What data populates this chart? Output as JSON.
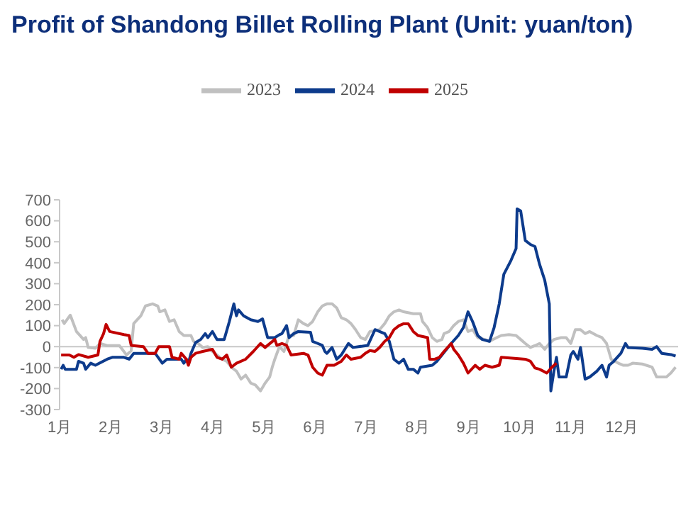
{
  "chart_data": {
    "type": "line",
    "title": "Profit of Shandong Billet Rolling Plant (Unit: yuan/ton)",
    "xlim": [
      1,
      13.1
    ],
    "xticks": [
      {
        "value": 1,
        "label": "1月"
      },
      {
        "value": 2,
        "label": "2月"
      },
      {
        "value": 3,
        "label": "3月"
      },
      {
        "value": 4,
        "label": "4月"
      },
      {
        "value": 5,
        "label": "5月"
      },
      {
        "value": 6,
        "label": "6月"
      },
      {
        "value": 7,
        "label": "7月"
      },
      {
        "value": 8,
        "label": "8月"
      },
      {
        "value": 9,
        "label": "9月"
      },
      {
        "value": 10,
        "label": "10月"
      },
      {
        "value": 11,
        "label": "11月"
      },
      {
        "value": 12,
        "label": "12月"
      }
    ],
    "ylim": [
      -300,
      700
    ],
    "yticks": [
      -300,
      -200,
      -100,
      0,
      100,
      200,
      300,
      400,
      500,
      600,
      700
    ],
    "grid": false,
    "legend": "top",
    "marker": "none",
    "line_style": "solid",
    "ref_lines": [
      {
        "axis": "y",
        "value": 0,
        "color": "#c8c8c8"
      }
    ],
    "series": [
      {
        "name": "2023",
        "color": "#c0c0c0",
        "x": [
          1.05,
          1.09,
          1.21,
          1.33,
          1.47,
          1.51,
          1.56,
          1.7,
          1.79,
          1.93,
          2.17,
          2.31,
          2.4,
          2.45,
          2.59,
          2.68,
          2.82,
          2.92,
          2.96,
          3.06,
          3.15,
          3.24,
          3.34,
          3.43,
          3.57,
          3.62,
          3.71,
          3.8,
          3.9,
          3.99,
          4.08,
          4.18,
          4.27,
          4.36,
          4.46,
          4.55,
          4.64,
          4.74,
          4.83,
          4.93,
          5.02,
          5.11,
          5.16,
          5.21,
          5.3,
          5.39,
          5.49,
          5.58,
          5.67,
          5.77,
          5.86,
          5.95,
          6.05,
          6.14,
          6.23,
          6.33,
          6.42,
          6.51,
          6.61,
          6.7,
          6.79,
          6.89,
          6.98,
          7.07,
          7.26,
          7.36,
          7.45,
          7.54,
          7.64,
          7.73,
          7.92,
          8.06,
          8.1,
          8.2,
          8.29,
          8.38,
          8.48,
          8.52,
          8.62,
          8.71,
          8.8,
          8.9,
          8.99,
          9.08,
          9.18,
          9.32,
          9.41,
          9.55,
          9.64,
          9.79,
          9.93,
          10.02,
          10.11,
          10.21,
          10.3,
          10.39,
          10.49,
          10.58,
          10.67,
          10.81,
          10.91,
          11.0,
          11.09,
          11.19,
          11.28,
          11.37,
          11.51,
          11.61,
          11.7,
          11.79,
          11.93,
          12.03,
          12.12,
          12.21,
          12.4,
          12.59,
          12.68,
          12.87,
          12.96,
          13.05
        ],
        "values": [
          128,
          110,
          150,
          72,
          34,
          43,
          -4,
          -8,
          15,
          5,
          5,
          -40,
          -20,
          110,
          147,
          194,
          204,
          194,
          166,
          175,
          120,
          128,
          72,
          53,
          53,
          25,
          15,
          -4,
          0,
          -23,
          -40,
          -60,
          -70,
          -98,
          -117,
          -155,
          -136,
          -174,
          -183,
          -211,
          -174,
          -145,
          -98,
          -60,
          0,
          -23,
          53,
          53,
          128,
          110,
          100,
          120,
          166,
          194,
          204,
          204,
          185,
          138,
          128,
          110,
          81,
          43,
          34,
          72,
          81,
          110,
          147,
          166,
          175,
          166,
          157,
          157,
          120,
          90,
          43,
          25,
          34,
          62,
          72,
          100,
          120,
          128,
          72,
          81,
          43,
          34,
          25,
          43,
          53,
          57,
          53,
          34,
          15,
          -4,
          5,
          15,
          -13,
          15,
          34,
          43,
          43,
          15,
          81,
          81,
          62,
          72,
          53,
          43,
          15,
          -60,
          -79,
          -89,
          -89,
          -79,
          -83,
          -98,
          -145,
          -145,
          -125,
          -98
        ]
      },
      {
        "name": "2024",
        "color": "#0d3b8c",
        "x": [
          1.03,
          1.07,
          1.11,
          1.33,
          1.37,
          1.47,
          1.51,
          1.61,
          1.7,
          1.93,
          2.03,
          2.26,
          2.36,
          2.45,
          2.87,
          3.01,
          3.1,
          3.38,
          3.43,
          3.48,
          3.52,
          3.57,
          3.66,
          3.76,
          3.85,
          3.9,
          3.99,
          4.08,
          4.22,
          4.32,
          4.41,
          4.46,
          4.5,
          4.6,
          4.74,
          4.88,
          4.97,
          5.07,
          5.21,
          5.3,
          5.35,
          5.44,
          5.49,
          5.58,
          5.67,
          5.91,
          5.95,
          6.05,
          6.14,
          6.19,
          6.23,
          6.33,
          6.42,
          6.51,
          6.65,
          6.74,
          7.03,
          7.17,
          7.26,
          7.36,
          7.45,
          7.54,
          7.64,
          7.73,
          7.82,
          7.92,
          8.01,
          8.06,
          8.29,
          8.38,
          8.48,
          8.66,
          8.8,
          8.9,
          8.99,
          9.08,
          9.18,
          9.27,
          9.41,
          9.5,
          9.6,
          9.69,
          9.83,
          9.93,
          9.95,
          10.02,
          10.11,
          10.21,
          10.3,
          10.39,
          10.49,
          10.58,
          10.61,
          10.67,
          10.72,
          10.77,
          10.91,
          11.0,
          11.05,
          11.14,
          11.19,
          11.28,
          11.37,
          11.51,
          11.61,
          11.7,
          11.75,
          11.84,
          11.98,
          12.07,
          12.12,
          12.4,
          12.59,
          12.68,
          12.78,
          12.96,
          13.05
        ],
        "values": [
          -108,
          -89,
          -108,
          -108,
          -70,
          -79,
          -108,
          -79,
          -89,
          -60,
          -51,
          -51,
          -60,
          -32,
          -32,
          -79,
          -60,
          -60,
          -79,
          -60,
          -79,
          -32,
          19,
          34,
          62,
          43,
          72,
          34,
          34,
          119,
          204,
          147,
          175,
          147,
          128,
          120,
          132,
          43,
          43,
          57,
          62,
          100,
          43,
          62,
          72,
          68,
          25,
          15,
          6,
          -23,
          -32,
          -4,
          -60,
          -40,
          15,
          -4,
          6,
          81,
          72,
          62,
          25,
          -60,
          -79,
          -60,
          -108,
          -108,
          -126,
          -98,
          -89,
          -70,
          -40,
          15,
          53,
          91,
          166,
          119,
          53,
          34,
          25,
          91,
          204,
          345,
          411,
          468,
          657,
          647,
          506,
          487,
          477,
          392,
          317,
          204,
          -211,
          -117,
          -51,
          -145,
          -145,
          -40,
          -23,
          -60,
          -4,
          -155,
          -145,
          -117,
          -89,
          -145,
          -89,
          -70,
          -32,
          15,
          -4,
          -8,
          -13,
          0,
          -32,
          -38,
          -45
        ]
      },
      {
        "name": "2025",
        "color": "#c00000",
        "x": [
          1.03,
          1.19,
          1.28,
          1.37,
          1.56,
          1.75,
          1.79,
          1.86,
          1.91,
          1.98,
          2.26,
          2.36,
          2.4,
          2.64,
          2.73,
          2.87,
          2.94,
          3.15,
          3.2,
          3.34,
          3.38,
          3.48,
          3.52,
          3.57,
          3.66,
          3.8,
          3.99,
          4.08,
          4.18,
          4.27,
          4.36,
          4.46,
          4.64,
          4.79,
          4.93,
          5.02,
          5.21,
          5.25,
          5.35,
          5.44,
          5.53,
          5.77,
          5.86,
          5.95,
          6.05,
          6.14,
          6.23,
          6.37,
          6.51,
          6.61,
          6.7,
          6.89,
          6.98,
          7.07,
          7.17,
          7.26,
          7.36,
          7.45,
          7.54,
          7.64,
          7.73,
          7.82,
          7.92,
          8.01,
          8.2,
          8.24,
          8.34,
          8.43,
          8.52,
          8.66,
          8.71,
          8.8,
          8.9,
          8.99,
          9.13,
          9.22,
          9.32,
          9.46,
          9.6,
          9.64,
          10.11,
          10.21,
          10.3,
          10.39,
          10.53,
          10.63,
          10.72
        ],
        "values": [
          -40,
          -40,
          -51,
          -38,
          -51,
          -40,
          25,
          62,
          106,
          72,
          57,
          53,
          6,
          0,
          -32,
          -32,
          0,
          0,
          -51,
          -60,
          -32,
          -60,
          -89,
          -51,
          -32,
          -23,
          -13,
          -51,
          -60,
          -40,
          -98,
          -79,
          -60,
          -23,
          15,
          -4,
          34,
          6,
          15,
          6,
          -40,
          -32,
          -40,
          -98,
          -126,
          -136,
          -89,
          -89,
          -70,
          -40,
          -60,
          -51,
          -32,
          -19,
          -23,
          -4,
          25,
          43,
          81,
          100,
          109,
          109,
          72,
          53,
          43,
          -60,
          -60,
          -51,
          -23,
          15,
          -13,
          -40,
          -79,
          -126,
          -89,
          -108,
          -89,
          -98,
          -89,
          -51,
          -60,
          -70,
          -102,
          -108,
          -126,
          -98,
          -79
        ]
      }
    ]
  }
}
